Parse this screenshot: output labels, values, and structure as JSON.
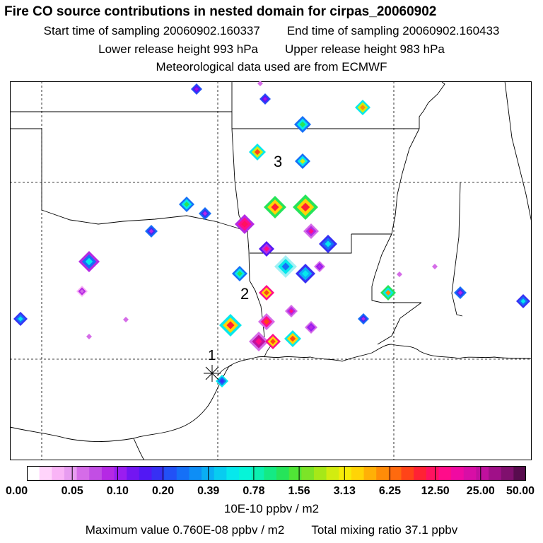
{
  "header": {
    "title": "Fire CO source contributions in nested domain for cirpas_20060902",
    "start_label": "Start time of sampling 20060902.160337",
    "end_label": "End time of sampling 20060902.160433",
    "lower_label": "Lower release height  993 hPa",
    "upper_label": "Upper release height  983 hPa",
    "met_label": "Meteorological data used are from ECMWF"
  },
  "map": {
    "markers": [
      {
        "id": "1",
        "label": "1"
      },
      {
        "id": "2",
        "label": "2"
      },
      {
        "id": "3",
        "label": "3"
      }
    ],
    "background": "#ffffff",
    "line_color": "#000000"
  },
  "colorbar": {
    "tick_labels": [
      "0.00",
      "0.05",
      "0.10",
      "0.20",
      "0.39",
      "0.78",
      "1.56",
      "3.13",
      "6.25",
      "12.50",
      "25.00",
      "50.00"
    ],
    "colors": [
      "#ffffff",
      "#ffd4fb",
      "#f9b4f6",
      "#e79cf0",
      "#d56ce8",
      "#c24ee4",
      "#b529e4",
      "#9a1df0",
      "#7316f2",
      "#5218f4",
      "#3730f4",
      "#2251f6",
      "#1570f7",
      "#0e8ef6",
      "#0aaef4",
      "#08ccf0",
      "#06e8ec",
      "#06f4d8",
      "#0cf0b0",
      "#14ea84",
      "#26e45a",
      "#50e636",
      "#7ce428",
      "#a6e818",
      "#d2ec10",
      "#f6ec08",
      "#ffd406",
      "#ffb006",
      "#ff8c08",
      "#ff6a0e",
      "#ff4418",
      "#ff2234",
      "#ff1260",
      "#ff0c8a",
      "#f00aa2",
      "#d80ea6",
      "#c0109e",
      "#a01088",
      "#80106e",
      "#580c4e"
    ],
    "units": "10E-10 ppbv / m2"
  },
  "footer": {
    "max_label": "Maximum value  0.760E-08 ppbv / m2",
    "total_label": "Total mixing ratio     37.1 ppbv"
  }
}
